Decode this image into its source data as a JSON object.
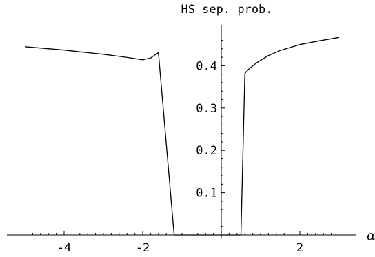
{
  "chart_data": {
    "type": "line",
    "title": "HS sep. prob.",
    "xlabel": "α",
    "ylabel": "",
    "xlim": [
      -5,
      3
    ],
    "ylim": [
      0,
      0.48
    ],
    "x_ticks_major": [
      -4,
      -2,
      2
    ],
    "x_ticks_minor": [
      -4.8,
      -4.6,
      -4.4,
      -4.2,
      -3.8,
      -3.6,
      -3.4,
      -3.2,
      -3.0,
      -2.8,
      -2.6,
      -2.4,
      -2.2,
      -1.8,
      -1.6,
      -1.4,
      -1.2,
      -1.0,
      -0.8,
      -0.6,
      -0.4,
      -0.2,
      0.2,
      0.4,
      0.6,
      0.8,
      1.0,
      1.2,
      1.4,
      1.6,
      1.8,
      2.2,
      2.4,
      2.6,
      2.8
    ],
    "y_ticks_major": [
      0.1,
      0.2,
      0.3,
      0.4
    ],
    "y_ticks_minor": [
      0.02,
      0.04,
      0.06,
      0.08,
      0.12,
      0.14,
      0.16,
      0.18,
      0.22,
      0.24,
      0.26,
      0.28,
      0.32,
      0.34,
      0.36,
      0.38,
      0.42,
      0.44,
      0.46
    ],
    "series": [
      {
        "x": [
          -5.0,
          -4.5,
          -4.0,
          -3.5,
          -3.0,
          -2.5,
          -2.2,
          -2.0,
          -1.8,
          -1.7,
          -1.6,
          -1.2,
          -1.15,
          -1.1,
          -1.0,
          -0.5,
          0.0,
          0.3,
          0.5,
          0.6,
          0.7,
          0.9,
          1.2,
          1.5,
          2.0,
          2.5,
          3.0
        ],
        "y": [
          0.445,
          0.441,
          0.437,
          0.432,
          0.427,
          0.421,
          0.417,
          0.414,
          0.418,
          0.425,
          0.431,
          0.0,
          0.0,
          0.0,
          0.0,
          0.0,
          0.0,
          0.0,
          0.0,
          0.382,
          0.392,
          0.407,
          0.424,
          0.436,
          0.45,
          0.459,
          0.467
        ]
      }
    ]
  }
}
